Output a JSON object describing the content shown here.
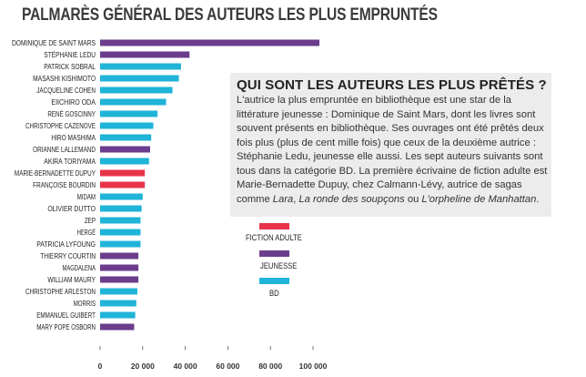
{
  "title": "PALMARÈS GÉNÉRAL DES AUTEURS LES PLUS EMPRUNTÉS",
  "colors": {
    "fiction": "#e8334a",
    "jeunesse": "#6b3d8c",
    "bd": "#1fb4d8"
  },
  "info": {
    "heading": "QUI SONT LES AUTEURS LES PLUS PRÊTÉS ?",
    "p1": "L'autrice la plus empruntée en bibliothèque est une star de la littérature jeunesse : Dominique de Saint Mars, dont les livres sont souvent présents en bibliothèque. Ses ouvrages ont été prêtés deux fois plus (plus de cent mille fois) que ceux de la deuxième autrice : Stéphanie Ledu, jeunesse elle aussi. Les sept auteurs suivants sont tous dans la catégorie BD. La première écrivaine de fiction adulte est Marie-Bernadette Dupuy, chez Calmann-Lévy, autrice de sagas comme ",
    "book1": "Lara",
    "sep1": ", ",
    "book2": "La ronde des soupçons",
    "sep2": " ou ",
    "book3": "L'orpheline de Manhattan",
    "end": "."
  },
  "legend": [
    {
      "key": "fiction",
      "label": "FICTION ADULTE"
    },
    {
      "key": "jeunesse",
      "label": "JEUNESSE"
    },
    {
      "key": "bd",
      "label": "BD"
    }
  ],
  "chart_data": {
    "type": "bar",
    "orientation": "horizontal",
    "title": "PALMARÈS GÉNÉRAL DES AUTEURS LES PLUS EMPRUNTÉS",
    "xlim": [
      0,
      100000
    ],
    "xticks": [
      0,
      20000,
      40000,
      60000,
      80000,
      100000
    ],
    "xtick_labels": [
      "0",
      "20 000",
      "40 000",
      "60 000",
      "80 000",
      "100 000"
    ],
    "categories": [
      "DOMINIQUE DE SAINT MARS",
      "STÉPHANIE LEDU",
      "PATRICK SOBRAL",
      "MASASHI KISHIMOTO",
      "JACQUELINE COHEN",
      "EIICHIRO ODA",
      "RENÉ GOSCINNY",
      "CHRISTOPHE CAZENOVE",
      "HIRO MASHIMA",
      "ORIANNE LALLEMAND",
      "AKIRA TORIYAMA",
      "MARIE-BERNADETTE DUPUY",
      "FRANÇOISE BOURDIN",
      "MIDAM",
      "OLIVIER DUTTO",
      "ZEP",
      "HERGÉ",
      "PATRICIA LYFOUNG",
      "THIERRY COURTIN",
      "MAGDALENA",
      "WILLIAM MAURY",
      "CHRISTOPHE ARLESTON",
      "MORRIS",
      "EMMANUEL GUIBERT",
      "MARY POPE OSBORN"
    ],
    "values": [
      103000,
      42000,
      38000,
      37000,
      34000,
      31000,
      27000,
      25000,
      24000,
      23500,
      23000,
      21000,
      21000,
      20000,
      19500,
      19000,
      19000,
      19000,
      18000,
      18000,
      18000,
      17500,
      17000,
      16500,
      16000
    ],
    "genres": [
      "jeunesse",
      "jeunesse",
      "bd",
      "bd",
      "bd",
      "bd",
      "bd",
      "bd",
      "bd",
      "jeunesse",
      "bd",
      "fiction",
      "fiction",
      "bd",
      "bd",
      "bd",
      "bd",
      "bd",
      "jeunesse",
      "jeunesse",
      "jeunesse",
      "bd",
      "bd",
      "bd",
      "jeunesse"
    ],
    "legend_position": "right"
  }
}
